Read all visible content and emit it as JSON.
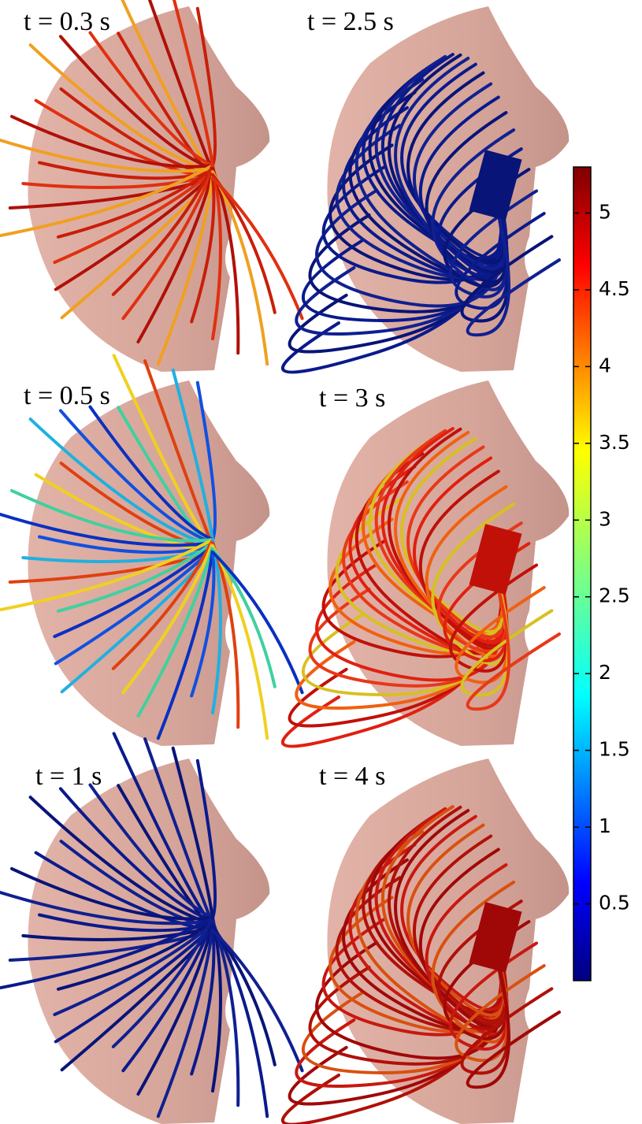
{
  "panels": [
    {
      "label": "t = 0.3 s"
    },
    {
      "label": "t = 2.5 s"
    },
    {
      "label": "t = 0.5 s"
    },
    {
      "label": "t = 3 s"
    },
    {
      "label": "t = 1 s"
    },
    {
      "label": "t = 4 s"
    }
  ],
  "colorbar": {
    "range": [
      0,
      5.3
    ],
    "ticks": [
      0.5,
      1,
      1.5,
      2,
      2.5,
      3,
      3.5,
      4,
      4.5,
      5
    ]
  }
}
